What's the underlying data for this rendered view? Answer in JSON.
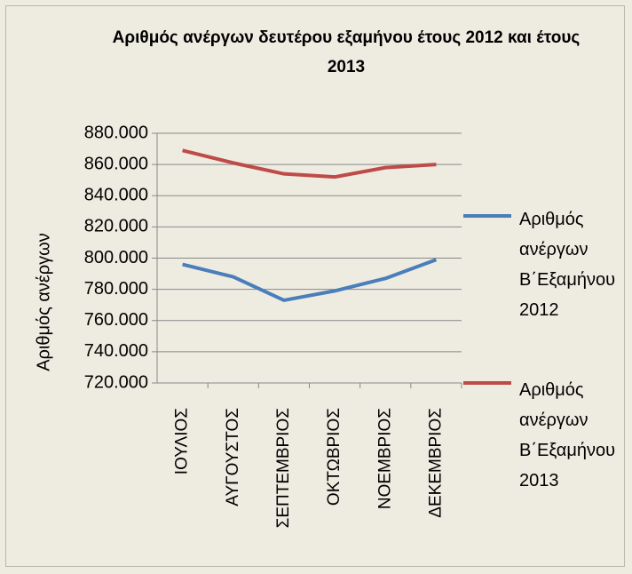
{
  "chart_data": {
    "type": "line",
    "title": "Αριθμός ανέργων  δευτέρου εξαμήνου  έτους 2012 και έτους 2013",
    "y_label": "Αριθμός ανέργων",
    "categories": [
      "ΙΟΥΛΙΟΣ",
      "ΑΥΓΟΥΣΤΟΣ",
      "ΣΕΠΤΕΜΒΡΙΟΣ",
      "ΟΚΤΩΒΡΙΟΣ",
      "ΝΟΕΜΒΡΙΟΣ",
      "ΔΕΚΕΜΒΡΙΟΣ"
    ],
    "series": [
      {
        "name": "Αριθμός ανέργων Β΄Εξαμήνου 2012",
        "color": "#4a7ebb",
        "values": [
          796000,
          788000,
          773000,
          779000,
          787000,
          799000
        ]
      },
      {
        "name": "Αριθμός ανέργων Β΄Εξαμήνου 2013",
        "color": "#be4b48",
        "values": [
          869000,
          861000,
          854000,
          852000,
          858000,
          860000
        ]
      }
    ],
    "ylim": [
      720000,
      880000
    ],
    "yticks": [
      {
        "value": 720000,
        "label": "720.000"
      },
      {
        "value": 740000,
        "label": "740.000"
      },
      {
        "value": 760000,
        "label": "760.000"
      },
      {
        "value": 780000,
        "label": "780.000"
      },
      {
        "value": 800000,
        "label": "800.000"
      },
      {
        "value": 820000,
        "label": "820.000"
      },
      {
        "value": 840000,
        "label": "840.000"
      },
      {
        "value": 860000,
        "label": "860.000"
      },
      {
        "value": 880000,
        "label": "880.000"
      }
    ],
    "grid": true,
    "legend": "right"
  }
}
